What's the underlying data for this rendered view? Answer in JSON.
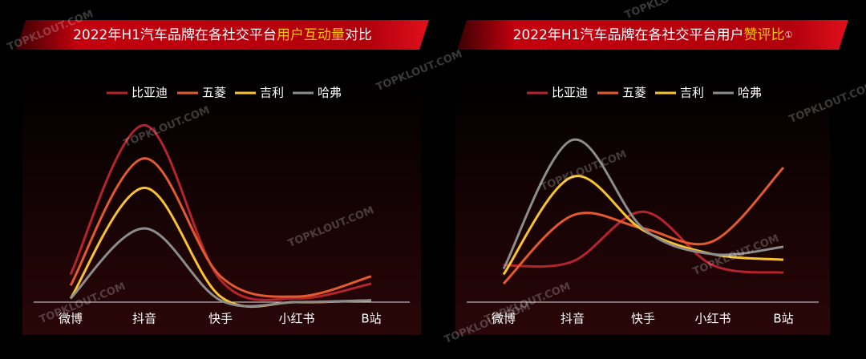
{
  "watermark": "TOPKLOUT.COM",
  "chart_data": [
    {
      "type": "line",
      "title": [
        "2022年H1汽车品牌在各社交平台",
        "用户互动量",
        "对比"
      ],
      "categories": [
        "微博",
        "抖音",
        "快手",
        "小红书",
        "B站"
      ],
      "ylim": [
        0,
        100
      ],
      "series": [
        {
          "name": "比亚迪",
          "color": "#b3242c",
          "values": [
            15,
            96,
            12,
            2,
            10
          ]
        },
        {
          "name": "五菱",
          "color": "#e35a2f",
          "values": [
            9,
            78,
            14,
            3,
            14
          ]
        },
        {
          "name": "吉利",
          "color": "#f8c230",
          "values": [
            2,
            62,
            3,
            0,
            1
          ]
        },
        {
          "name": "哈弗",
          "color": "#8c8c8c",
          "values": [
            2,
            40,
            1,
            0,
            1
          ]
        }
      ]
    },
    {
      "type": "line",
      "title": [
        "2022年H1汽车品牌在各社交平台用户",
        "赞评比",
        "①"
      ],
      "categories": [
        "微博",
        "抖音",
        "快手",
        "小红书",
        "B站"
      ],
      "ylim": [
        0,
        100
      ],
      "series": [
        {
          "name": "比亚迪",
          "color": "#b3242c",
          "values": [
            20,
            22,
            49,
            20,
            16
          ]
        },
        {
          "name": "五菱",
          "color": "#e35a2f",
          "values": [
            10,
            47,
            40,
            33,
            73
          ]
        },
        {
          "name": "吉利",
          "color": "#f8c230",
          "values": [
            15,
            68,
            39,
            26,
            23
          ]
        },
        {
          "name": "哈弗",
          "color": "#8c8c8c",
          "values": [
            18,
            88,
            40,
            26,
            30
          ]
        }
      ]
    }
  ]
}
